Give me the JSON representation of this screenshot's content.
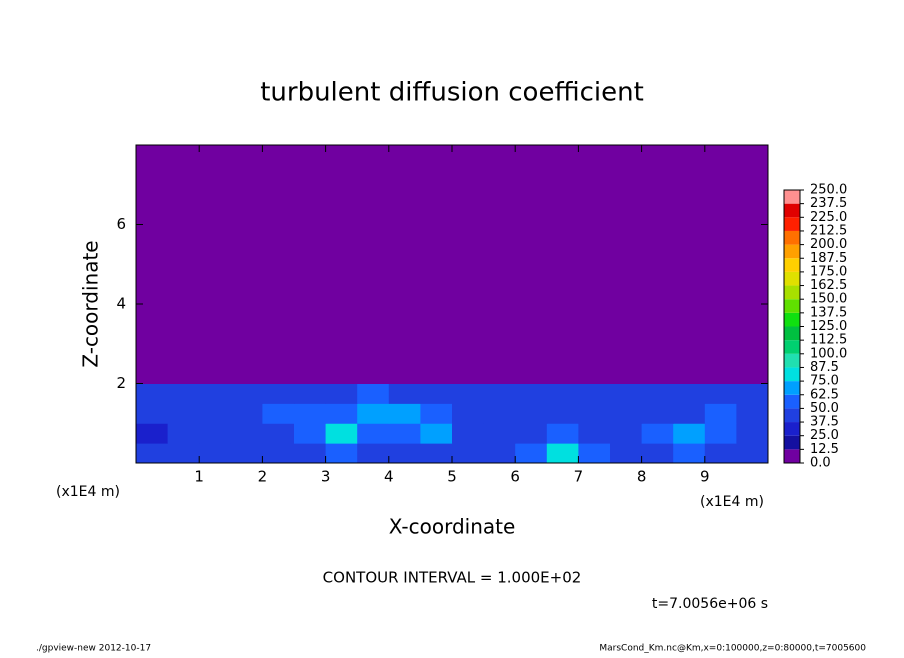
{
  "chart_data": {
    "type": "heatmap",
    "title": "turbulent diffusion coefficient",
    "xlabel": "X-coordinate",
    "ylabel": "Z-coordinate",
    "xunit": "(x1E4 m)",
    "yunit": "(x1E4 m)",
    "annotation": "CONTOUR INTERVAL = 1.000E+02",
    "time_label": "t=7.0056e+06 s",
    "footer_left": "./gpview-new  2012-10-17",
    "footer_right": "MarsCond_Km.nc@Km,x=0:100000,z=0:80000,t=7005600",
    "xlim": [
      0,
      10
    ],
    "ylim": [
      0,
      8
    ],
    "xticks": [
      1,
      2,
      3,
      4,
      5,
      6,
      7,
      8,
      9
    ],
    "yticks": [
      2,
      4,
      6
    ],
    "x_edges": [
      0,
      0.5,
      1,
      1.5,
      2,
      2.5,
      3,
      3.5,
      4,
      4.5,
      5,
      5.5,
      6,
      6.5,
      7,
      7.5,
      8,
      8.5,
      9,
      9.5,
      10
    ],
    "z_edges": [
      0,
      0.5,
      1,
      1.5,
      2,
      8
    ],
    "values": [
      [
        40,
        38,
        42,
        45,
        40,
        44,
        50,
        48,
        45,
        42,
        40,
        45,
        60,
        80,
        50,
        42,
        45,
        50,
        44,
        40
      ],
      [
        35,
        40,
        38,
        42,
        48,
        55,
        75,
        60,
        50,
        70,
        45,
        40,
        48,
        50,
        42,
        40,
        55,
        70,
        50,
        42
      ],
      [
        38,
        42,
        40,
        45,
        50,
        60,
        55,
        70,
        65,
        50,
        45,
        42,
        44,
        46,
        42,
        40,
        45,
        48,
        52,
        45
      ],
      [
        45,
        40,
        42,
        44,
        42,
        40,
        45,
        50,
        48,
        45,
        44,
        42,
        40,
        42,
        44,
        45,
        42,
        44,
        46,
        48
      ],
      [
        0,
        0,
        0,
        0,
        0,
        0,
        0,
        0,
        0,
        0,
        0,
        0,
        0,
        0,
        0,
        0,
        0,
        0,
        0,
        0
      ]
    ],
    "colorbar_ticks": [
      {
        "value": 0,
        "label": "0.0"
      },
      {
        "value": 12.5,
        "label": "12.5"
      },
      {
        "value": 25,
        "label": "25.0"
      },
      {
        "value": 37.5,
        "label": "37.5"
      },
      {
        "value": 50,
        "label": "50.0"
      },
      {
        "value": 62.5,
        "label": "62.5"
      },
      {
        "value": 75,
        "label": "75.0"
      },
      {
        "value": 87.5,
        "label": "87.5"
      },
      {
        "value": 100,
        "label": "100.0"
      },
      {
        "value": 112.5,
        "label": "112.5"
      },
      {
        "value": 125,
        "label": "125.0"
      },
      {
        "value": 137.5,
        "label": "137.5"
      },
      {
        "value": 150,
        "label": "150.0"
      },
      {
        "value": 162.5,
        "label": "162.5"
      },
      {
        "value": 175,
        "label": "175.0"
      },
      {
        "value": 187.5,
        "label": "187.5"
      },
      {
        "value": 200,
        "label": "200.0"
      },
      {
        "value": 212.5,
        "label": "212.5"
      },
      {
        "value": 225,
        "label": "225.0"
      },
      {
        "value": 237.5,
        "label": "237.5"
      },
      {
        "value": 250,
        "label": "250.0"
      }
    ],
    "colors": [
      "#7000a0",
      "#1410a0",
      "#1a20cc",
      "#2040e0",
      "#1a60ff",
      "#00a0ff",
      "#00e0e0",
      "#20e0b0",
      "#00d070",
      "#00c040",
      "#10e010",
      "#60e000",
      "#a8e000",
      "#e0e000",
      "#ffd000",
      "#ffa000",
      "#ff7000",
      "#ff2000",
      "#e00000",
      "#ff9090"
    ]
  }
}
